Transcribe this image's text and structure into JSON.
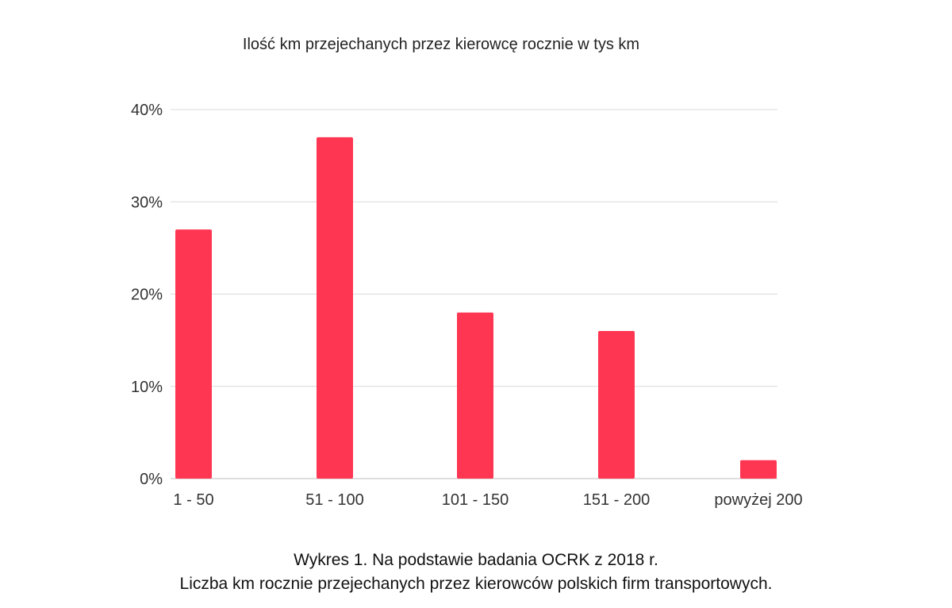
{
  "chart_data": {
    "type": "bar",
    "title": "Ilość km przejechanych przez kierowcę rocznie w tys km",
    "xlabel": "",
    "ylabel": "",
    "categories": [
      "1 - 50",
      "51 - 100",
      "101 - 150",
      "151 - 200",
      "powyżej 200"
    ],
    "values": [
      27,
      37,
      18,
      16,
      2
    ],
    "value_unit": "%",
    "ylim": [
      0,
      40
    ],
    "yticks": [
      0,
      10,
      20,
      30,
      40
    ],
    "ytick_labels": [
      "0%",
      "10%",
      "20%",
      "30%",
      "40%"
    ],
    "grid": true,
    "legend": "none",
    "bar_color": "#ff3652"
  },
  "caption": {
    "line1": "Wykres 1. Na podstawie badania OCRK z 2018 r.",
    "line2": "Liczba km rocznie przejechanych przez kierowców polskich firm transportowych."
  }
}
